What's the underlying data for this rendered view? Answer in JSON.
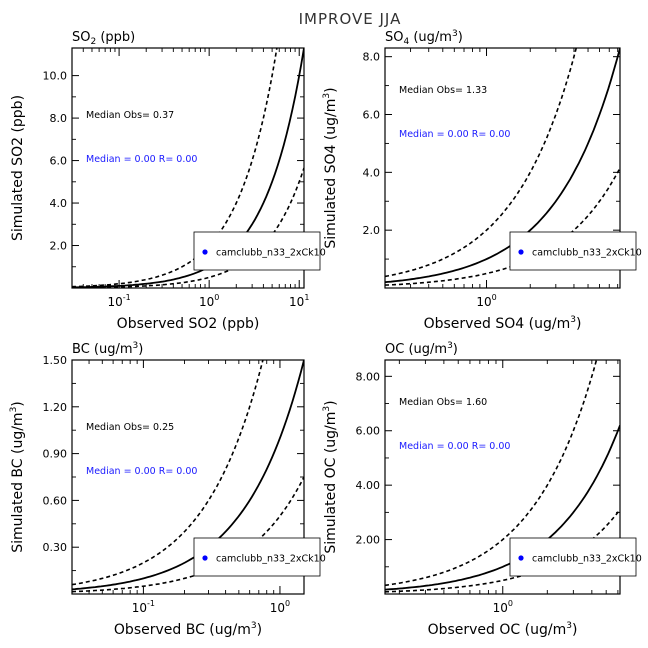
{
  "figure_title": "IMPROVE JJA",
  "legend_label": "camclubb_n33_2xCk10",
  "colors": {
    "marker": "#0000ff",
    "median_text": "#1a1aff",
    "line": "#000000"
  },
  "chart_data": [
    {
      "type": "scatter",
      "panel_title": "SO2 (ppb)",
      "panel_title_base": "SO",
      "panel_title_sub": "2",
      "panel_title_rest": " (ppb)",
      "xlabel": "Observed SO2 (ppb)",
      "ylabel": "Simulated SO2 (ppb)",
      "x_scale": "log",
      "x_ticks": [
        {
          "value": 0.1,
          "base": "10",
          "exp": "-1"
        },
        {
          "value": 1,
          "base": "10",
          "exp": "0"
        },
        {
          "value": 10,
          "base": "10",
          "exp": "1"
        }
      ],
      "y_ticks": [
        {
          "value": 2,
          "label": "2.0"
        },
        {
          "value": 4,
          "label": "4.0"
        },
        {
          "value": 6,
          "label": "6.0"
        },
        {
          "value": 8,
          "label": "8.0"
        },
        {
          "value": 10,
          "label": "10.0"
        }
      ],
      "xlim": [
        0.03,
        11.3
      ],
      "ylim": [
        0,
        11.3
      ],
      "reference_lines": [
        "1:1",
        "2:1",
        "1:2"
      ],
      "median_obs_text": "Median Obs= 0.37",
      "median_stats_text": "Median = 0.00 R= 0.00",
      "series": [
        {
          "name": "camclubb_n33_2xCk10",
          "points": []
        }
      ],
      "legend": "bottom-right"
    },
    {
      "type": "scatter",
      "panel_title": "SO4 (ug/m3)",
      "panel_title_base": "SO",
      "panel_title_sub": "4",
      "panel_title_rest": " (ug/m",
      "xlabel": "Observed SO4 (ug/m3)",
      "ylabel": "Simulated SO4 (ug/m3)",
      "x_scale": "log",
      "x_ticks": [
        {
          "value": 1,
          "base": "10",
          "exp": "0"
        }
      ],
      "y_ticks": [
        {
          "value": 2,
          "label": "2.0"
        },
        {
          "value": 4,
          "label": "4.0"
        },
        {
          "value": 6,
          "label": "6.0"
        },
        {
          "value": 8,
          "label": "8.0"
        }
      ],
      "xlim": [
        0.2,
        8.3
      ],
      "ylim": [
        0,
        8.3
      ],
      "reference_lines": [
        "1:1",
        "2:1",
        "1:2"
      ],
      "median_obs_text": "Median Obs= 1.33",
      "median_stats_text": "Median = 0.00 R= 0.00",
      "series": [
        {
          "name": "camclubb_n33_2xCk10",
          "points": []
        }
      ],
      "legend": "bottom-right"
    },
    {
      "type": "scatter",
      "panel_title": "BC (ug/m3)",
      "panel_title_base": "BC",
      "panel_title_sub": "",
      "panel_title_rest": " (ug/m",
      "xlabel": "Observed BC (ug/m3)",
      "ylabel": "Simulated BC (ug/m3)",
      "x_scale": "log",
      "x_ticks": [
        {
          "value": 0.1,
          "base": "10",
          "exp": "-1"
        },
        {
          "value": 1,
          "base": "10",
          "exp": "0"
        }
      ],
      "y_ticks": [
        {
          "value": 0.3,
          "label": "0.30"
        },
        {
          "value": 0.6,
          "label": "0.60"
        },
        {
          "value": 0.9,
          "label": "0.90"
        },
        {
          "value": 1.2,
          "label": "1.20"
        },
        {
          "value": 1.5,
          "label": "1.50"
        }
      ],
      "xlim": [
        0.03,
        1.5
      ],
      "ylim": [
        0,
        1.5
      ],
      "reference_lines": [
        "1:1",
        "2:1",
        "1:2"
      ],
      "median_obs_text": "Median Obs= 0.25",
      "median_stats_text": "Median = 0.00 R= 0.00",
      "series": [
        {
          "name": "camclubb_n33_2xCk10",
          "points": []
        }
      ],
      "legend": "bottom-right"
    },
    {
      "type": "scatter",
      "panel_title": "OC (ug/m3)",
      "panel_title_base": "OC",
      "panel_title_sub": "",
      "panel_title_rest": " (ug/m",
      "xlabel": "Observed OC (ug/m3)",
      "ylabel": "Simulated OC (ug/m3)",
      "x_scale": "log",
      "x_ticks": [
        {
          "value": 1,
          "base": "10",
          "exp": "0"
        }
      ],
      "y_ticks": [
        {
          "value": 2,
          "label": "2.00"
        },
        {
          "value": 4,
          "label": "4.00"
        },
        {
          "value": 6,
          "label": "6.00"
        },
        {
          "value": 8,
          "label": "8.00"
        }
      ],
      "xlim": [
        0.16,
        6.2
      ],
      "ylim": [
        0,
        8.6
      ],
      "reference_lines": [
        "1:1",
        "2:1",
        "1:2"
      ],
      "median_obs_text": "Median Obs= 1.60",
      "median_stats_text": "Median = 0.00 R= 0.00",
      "series": [
        {
          "name": "camclubb_n33_2xCk10",
          "points": []
        }
      ],
      "legend": "bottom-right"
    }
  ]
}
